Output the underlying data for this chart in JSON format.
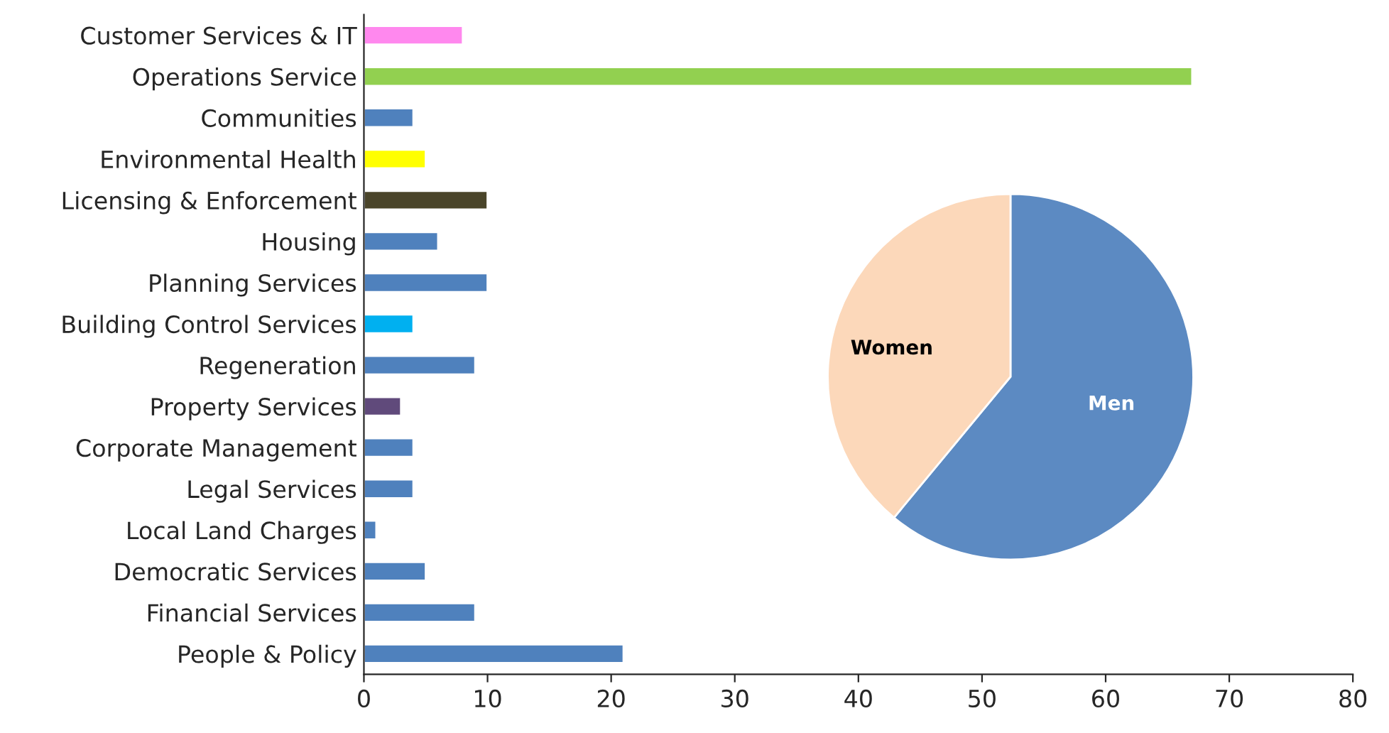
{
  "chart_data": [
    {
      "type": "bar",
      "orientation": "horizontal",
      "categories": [
        "Customer Services & IT",
        "Operations Service",
        "Communities",
        "Environmental Health",
        "Licensing & Enforcement",
        "Housing",
        "Planning Services",
        "Building Control Services",
        "Regeneration",
        "Property Services",
        "Corporate Management",
        "Legal Services",
        "Local Land Charges",
        "Democratic Services",
        "Financial Services",
        "People & Policy"
      ],
      "values": [
        8,
        67,
        4,
        5,
        10,
        6,
        10,
        4,
        9,
        3,
        4,
        4,
        1,
        5,
        9,
        21
      ],
      "colors": [
        "#ff88ee",
        "#92d050",
        "#4f81bd",
        "#ffff00",
        "#4a452a",
        "#4f81bd",
        "#4f81bd",
        "#00b0f0",
        "#4f81bd",
        "#604a7b",
        "#4f81bd",
        "#4f81bd",
        "#4f81bd",
        "#4f81bd",
        "#4f81bd",
        "#4f81bd"
      ],
      "xlim": [
        0,
        80
      ],
      "xticks": [
        0,
        10,
        20,
        30,
        40,
        50,
        60,
        70,
        80
      ],
      "grid": false,
      "legend": false
    },
    {
      "type": "pie",
      "categories": [
        "Men",
        "Women"
      ],
      "values": [
        61,
        39
      ],
      "colors": [
        "#4f81bd",
        "#fcd5b5"
      ]
    }
  ]
}
